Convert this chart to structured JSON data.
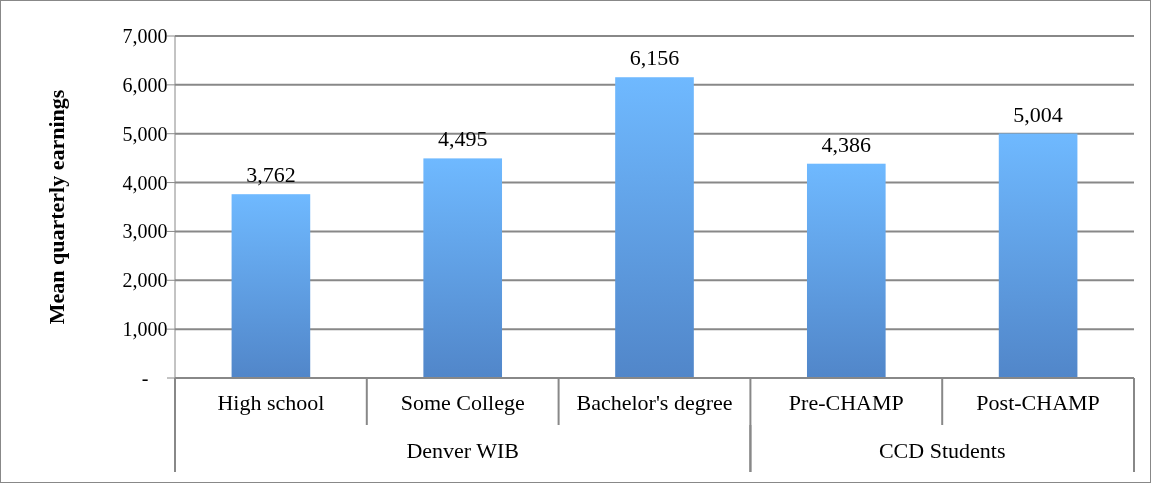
{
  "chart_data": {
    "type": "bar",
    "ylabel": "Mean quarterly earnings",
    "categories": [
      "High school",
      "Some College",
      "Bachelor's degree",
      "Pre-CHAMP",
      "Post-CHAMP"
    ],
    "values": [
      3762,
      4495,
      6156,
      4386,
      5004
    ],
    "value_labels": [
      "3,762",
      "4,495",
      "6,156",
      "4,386",
      "5,004"
    ],
    "color": "#5a95e0",
    "ylim": [
      0,
      7000
    ],
    "yticks": [
      {
        "value": 0,
        "label": "-"
      },
      {
        "value": 1000,
        "label": "1,000"
      },
      {
        "value": 2000,
        "label": "2,000"
      },
      {
        "value": 3000,
        "label": "3,000"
      },
      {
        "value": 4000,
        "label": "4,000"
      },
      {
        "value": 5000,
        "label": "5,000"
      },
      {
        "value": 6000,
        "label": "6,000"
      },
      {
        "value": 7000,
        "label": "7,000"
      }
    ],
    "grid": "y",
    "annotations": [
      "Denver WIB",
      "CCD Students"
    ]
  }
}
